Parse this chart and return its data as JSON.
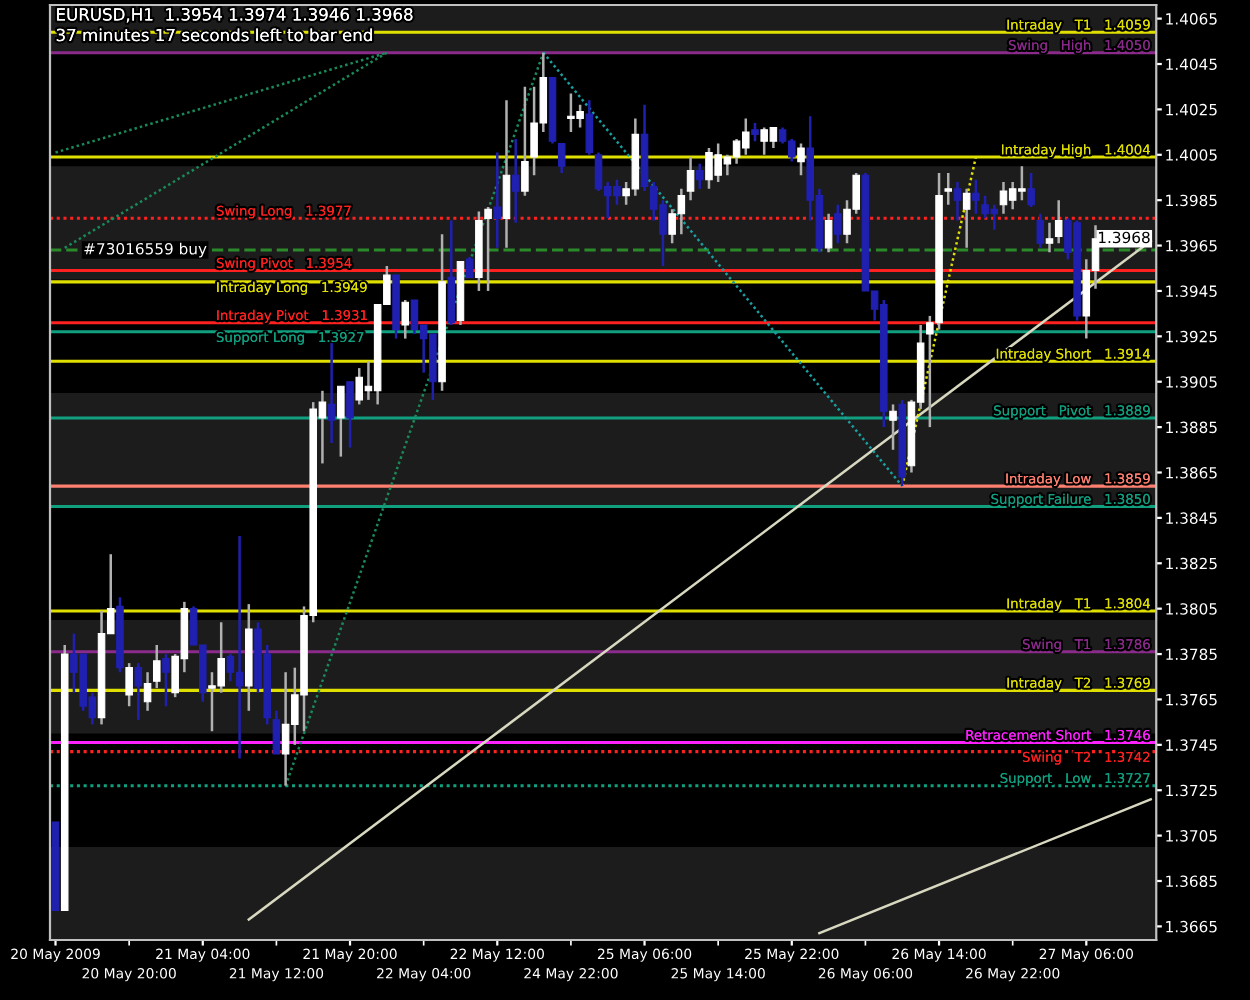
{
  "chart_data": {
    "type": "candlestick",
    "title": "EURUSD,H1  1.3954 1.3974 1.3946 1.3968",
    "subtitle": "37 minutes 17 seconds left to bar end",
    "categories": [
      "20 May 2009",
      null,
      null,
      null,
      null,
      null,
      null,
      null,
      "20 May 20:00",
      null,
      null,
      null,
      null,
      null,
      null,
      null,
      "21 May 04:00",
      null,
      null,
      null,
      null,
      null,
      null,
      null,
      "21 May 12:00",
      null,
      null,
      null,
      null,
      null,
      null,
      null,
      "21 May 20:00",
      null,
      null,
      null,
      null,
      null,
      null,
      null,
      "22 May 04:00",
      null,
      null,
      null,
      null,
      null,
      null,
      null,
      "22 May 12:00",
      null,
      null,
      null,
      null,
      null,
      null,
      null,
      "24 May 22:00",
      null,
      null,
      null,
      null,
      null,
      null,
      null,
      "25 May 06:00",
      null,
      null,
      null,
      null,
      null,
      null,
      null,
      "25 May 14:00",
      null,
      null,
      null,
      null,
      null,
      null,
      null,
      "25 May 22:00",
      null,
      null,
      null,
      null,
      null,
      null,
      null,
      "26 May 06:00",
      null,
      null,
      null,
      null,
      null,
      null,
      null,
      "26 May 14:00",
      null,
      null,
      null,
      null,
      null,
      null,
      null,
      "26 May 22:00",
      null,
      null,
      null,
      null,
      null,
      null,
      null,
      "27 May 06:00",
      null,
      null,
      null,
      null,
      null,
      null,
      null
    ],
    "ohlc": [
      [
        1.3711,
        1.3711,
        1.3672,
        1.3672
      ],
      [
        1.3672,
        1.3789,
        1.3672,
        1.3785
      ],
      [
        1.3785,
        1.3794,
        1.3768,
        1.3777
      ],
      [
        1.3785,
        1.3785,
        1.376,
        1.3762
      ],
      [
        1.3766,
        1.3768,
        1.3754,
        1.3757
      ],
      [
        1.3757,
        1.3804,
        1.3754,
        1.3794
      ],
      [
        1.3794,
        1.3829,
        1.3794,
        1.3805
      ],
      [
        1.3806,
        1.381,
        1.3777,
        1.3779
      ],
      [
        1.3767,
        1.3781,
        1.3762,
        1.3779
      ],
      [
        1.3779,
        1.3781,
        1.3756,
        1.3771
      ],
      [
        1.3764,
        1.3777,
        1.376,
        1.3772
      ],
      [
        1.3773,
        1.3789,
        1.377,
        1.3782
      ],
      [
        1.3783,
        1.3785,
        1.3762,
        1.3777
      ],
      [
        1.3768,
        1.3785,
        1.3766,
        1.3784
      ],
      [
        1.3783,
        1.3808,
        1.3777,
        1.3805
      ],
      [
        1.3805,
        1.3806,
        1.3789,
        1.3789
      ],
      [
        1.3789,
        1.3789,
        1.3764,
        1.3768
      ],
      [
        1.377,
        1.3777,
        1.3751,
        1.3771
      ],
      [
        1.3771,
        1.3799,
        1.3768,
        1.3783
      ],
      [
        1.3784,
        1.3785,
        1.3773,
        1.3777
      ],
      [
        1.3777,
        1.3837,
        1.3739,
        1.3771
      ],
      [
        1.3771,
        1.3807,
        1.376,
        1.3796
      ],
      [
        1.3796,
        1.3799,
        1.3768,
        1.377
      ],
      [
        1.3785,
        1.3789,
        1.3754,
        1.3757
      ],
      [
        1.3756,
        1.376,
        1.3741,
        1.3741
      ],
      [
        1.3741,
        1.3777,
        1.3727,
        1.3754
      ],
      [
        1.3754,
        1.3779,
        1.3745,
        1.3767
      ],
      [
        1.3767,
        1.3806,
        1.3751,
        1.3802
      ],
      [
        1.3802,
        1.3896,
        1.3799,
        1.3893
      ],
      [
        1.3889,
        1.3901,
        1.3869,
        1.3896
      ],
      [
        1.3895,
        1.3922,
        1.3878,
        1.3888
      ],
      [
        1.3889,
        1.3903,
        1.3872,
        1.3903
      ],
      [
        1.3905,
        1.3905,
        1.3876,
        1.3889
      ],
      [
        1.3897,
        1.3911,
        1.3895,
        1.3907
      ],
      [
        1.3901,
        1.3914,
        1.3897,
        1.3903
      ],
      [
        1.3901,
        1.3939,
        1.3895,
        1.3939
      ],
      [
        1.3939,
        1.3956,
        1.3939,
        1.3952
      ],
      [
        1.3952,
        1.3952,
        1.3924,
        1.3928
      ],
      [
        1.393,
        1.3941,
        1.3924,
        1.394
      ],
      [
        1.3941,
        1.3941,
        1.3926,
        1.3928
      ],
      [
        1.393,
        1.393,
        1.3909,
        1.3924
      ],
      [
        1.3926,
        1.3926,
        1.3897,
        1.3905
      ],
      [
        1.3905,
        1.397,
        1.3901,
        1.3949
      ],
      [
        1.3951,
        1.3976,
        1.393,
        1.3931
      ],
      [
        1.3932,
        1.3958,
        1.393,
        1.3958
      ],
      [
        1.3959,
        1.396,
        1.3951,
        1.3951
      ],
      [
        1.3951,
        1.398,
        1.3945,
        1.3976
      ],
      [
        1.3977,
        1.3982,
        1.3945,
        1.3981
      ],
      [
        1.3982,
        1.4006,
        1.3964,
        1.3977
      ],
      [
        1.3977,
        1.4029,
        1.3964,
        1.3996
      ],
      [
        1.3996,
        1.4012,
        1.3975,
        1.3989
      ],
      [
        1.3989,
        1.4035,
        1.3987,
        1.4002
      ],
      [
        1.4004,
        1.4035,
        1.3996,
        1.4019
      ],
      [
        1.4019,
        1.405,
        1.4015,
        1.4039
      ],
      [
        1.4039,
        1.4039,
        1.401,
        1.4011
      ],
      [
        1.401,
        1.401,
        1.3997,
        1.4
      ],
      [
        1.4021,
        1.4032,
        1.4015,
        1.4022
      ],
      [
        1.4021,
        1.4027,
        1.4017,
        1.4024
      ],
      [
        1.4023,
        1.4029,
        1.4005,
        1.4006
      ],
      [
        1.4005,
        1.4006,
        1.3989,
        1.399
      ],
      [
        1.3991,
        1.3993,
        1.3977,
        1.3987
      ],
      [
        1.3991,
        1.3994,
        1.3983,
        1.3987
      ],
      [
        1.3987,
        1.3993,
        1.3983,
        1.399
      ],
      [
        1.399,
        1.4021,
        1.3987,
        1.4014
      ],
      [
        1.4014,
        1.4027,
        1.3989,
        1.3991
      ],
      [
        1.3991,
        1.3993,
        1.3976,
        1.3981
      ],
      [
        1.3983,
        1.3985,
        1.3956,
        1.397
      ],
      [
        1.397,
        1.3981,
        1.3966,
        1.3979
      ],
      [
        1.3979,
        1.399,
        1.397,
        1.3987
      ],
      [
        1.3989,
        1.4004,
        1.3985,
        1.3998
      ],
      [
        1.3998,
        1.4001,
        1.399,
        1.3994
      ],
      [
        1.3994,
        1.4008,
        1.399,
        1.4006
      ],
      [
        1.3996,
        1.401,
        1.3993,
        1.4005
      ],
      [
        1.4001,
        1.4005,
        1.3996,
        1.4004
      ],
      [
        1.4004,
        1.4012,
        1.4001,
        1.4011
      ],
      [
        1.4008,
        1.4021,
        1.4005,
        1.4015
      ],
      [
        1.4016,
        1.4019,
        1.4011,
        1.4014
      ],
      [
        1.4011,
        1.4017,
        1.4005,
        1.4016
      ],
      [
        1.4011,
        1.4017,
        1.4008,
        1.4017
      ],
      [
        1.4016,
        1.4017,
        1.401,
        1.4011
      ],
      [
        1.4011,
        1.4012,
        1.4002,
        1.4004
      ],
      [
        1.4002,
        1.401,
        1.3996,
        1.4008
      ],
      [
        1.4008,
        1.4022,
        1.3976,
        1.3985
      ],
      [
        1.3987,
        1.399,
        1.3962,
        1.3964
      ],
      [
        1.3964,
        1.3979,
        1.3962,
        1.3976
      ],
      [
        1.3979,
        1.3983,
        1.3966,
        1.397
      ],
      [
        1.397,
        1.3985,
        1.3966,
        1.3981
      ],
      [
        1.3981,
        1.3997,
        1.3979,
        1.3996
      ],
      [
        1.3996,
        1.3997,
        1.3945,
        1.3945
      ],
      [
        1.3945,
        1.3945,
        1.3932,
        1.3937
      ],
      [
        1.3939,
        1.3941,
        1.3885,
        1.3892
      ],
      [
        1.3888,
        1.3895,
        1.3875,
        1.3892
      ],
      [
        1.3895,
        1.3897,
        1.3859,
        1.3863
      ],
      [
        1.3868,
        1.3897,
        1.3865,
        1.3896
      ],
      [
        1.3896,
        1.393,
        1.3893,
        1.3922
      ],
      [
        1.3926,
        1.3934,
        1.3885,
        1.3931
      ],
      [
        1.3931,
        1.3997,
        1.3928,
        1.3987
      ],
      [
        1.3989,
        1.3997,
        1.3983,
        1.399
      ],
      [
        1.399,
        1.3993,
        1.3976,
        1.3985
      ],
      [
        1.3981,
        1.399,
        1.3964,
        1.3988
      ],
      [
        1.3988,
        1.3994,
        1.3979,
        1.3985
      ],
      [
        1.3983,
        1.3987,
        1.3977,
        1.3979
      ],
      [
        1.3981,
        1.3983,
        1.3972,
        1.3979
      ],
      [
        1.3983,
        1.3993,
        1.3979,
        1.3989
      ],
      [
        1.3985,
        1.3993,
        1.3981,
        1.399
      ],
      [
        1.3989,
        1.4,
        1.3985,
        1.399
      ],
      [
        1.399,
        1.3997,
        1.3982,
        1.3983
      ],
      [
        1.3976,
        1.3979,
        1.3964,
        1.3966
      ],
      [
        1.3966,
        1.3975,
        1.3962,
        1.3968
      ],
      [
        1.3969,
        1.3985,
        1.3966,
        1.3976
      ],
      [
        1.3976,
        1.3977,
        1.3959,
        1.3962
      ],
      [
        1.3975,
        1.3976,
        1.3932,
        1.3934
      ],
      [
        1.3934,
        1.3959,
        1.3924,
        1.3954
      ],
      [
        1.3954,
        1.3974,
        1.3946,
        1.3968
      ],
      null,
      null,
      null,
      null,
      null,
      null
    ],
    "colors": [
      "#2020b0",
      "#ffffff",
      "#2020b0",
      "#2020b0",
      "#2020b0",
      "#ffffff",
      "#ffffff",
      "#2020b0",
      "#ffffff",
      "#2020b0",
      "#ffffff",
      "#ffffff",
      "#2020b0",
      "#ffffff",
      "#ffffff",
      "#2020b0",
      "#2020b0",
      "#ffffff",
      "#ffffff",
      "#2020b0",
      "#2020b0",
      "#ffffff",
      "#2020b0",
      "#2020b0",
      "#2020b0",
      "#ffffff",
      "#ffffff",
      "#ffffff",
      "#ffffff",
      "#ffffff",
      "#2020b0",
      "#ffffff",
      "#2020b0",
      "#ffffff",
      "#ffffff",
      "#ffffff",
      "#ffffff",
      "#2020b0",
      "#ffffff",
      "#2020b0",
      "#2020b0",
      "#2020b0",
      "#ffffff",
      "#2020b0",
      "#ffffff",
      "#2020b0",
      "#ffffff",
      "#ffffff",
      "#2020b0",
      "#ffffff",
      "#2020b0",
      "#ffffff",
      "#ffffff",
      "#ffffff",
      "#2020b0",
      "#2020b0",
      "#ffffff",
      "#ffffff",
      "#2020b0",
      "#2020b0",
      "#2020b0",
      "#2020b0",
      "#ffffff",
      "#ffffff",
      "#2020b0",
      "#2020b0",
      "#2020b0",
      "#ffffff",
      "#ffffff",
      "#ffffff",
      "#2020b0",
      "#ffffff",
      "#ffffff",
      "#ffffff",
      "#ffffff",
      "#ffffff",
      "#2020b0",
      "#ffffff",
      "#ffffff",
      "#2020b0",
      "#2020b0",
      "#ffffff",
      "#2020b0",
      "#2020b0",
      "#ffffff",
      "#2020b0",
      "#ffffff",
      "#ffffff",
      "#2020b0",
      "#2020b0",
      "#2020b0",
      "#ffffff",
      "#2020b0",
      "#ffffff",
      "#ffffff",
      "#ffffff",
      "#ffffff",
      "#ffffff",
      "#2020b0",
      "#ffffff",
      "#2020b0",
      "#2020b0",
      "#2020b0",
      "#ffffff",
      "#ffffff",
      "#ffffff",
      "#2020b0",
      "#2020b0",
      "#ffffff",
      "#ffffff",
      "#2020b0",
      "#2020b0",
      "#ffffff",
      "#ffffff",
      null,
      null,
      null,
      null,
      null,
      null
    ],
    "series": [
      {
        "type": "line",
        "color": "#d8d8c0",
        "line_style": "solid",
        "values": [
          null,
          null,
          null,
          null,
          null,
          null,
          null,
          null,
          null,
          null,
          null,
          null,
          null,
          null,
          null,
          null,
          null,
          null,
          null,
          null,
          null,
          1.3668,
          null,
          null,
          null,
          null,
          null,
          null,
          null,
          null,
          null,
          null,
          null,
          null,
          null,
          null,
          null,
          null,
          null,
          null,
          null,
          null,
          null,
          null,
          null,
          null,
          null,
          null,
          null,
          null,
          null,
          null,
          null,
          null,
          null,
          null,
          null,
          null,
          null,
          null,
          null,
          null,
          null,
          null,
          null,
          null,
          null,
          null,
          null,
          null,
          null,
          null,
          null,
          null,
          null,
          null,
          null,
          null,
          null,
          null,
          null,
          null,
          null,
          null,
          null,
          null,
          null,
          null,
          null,
          null,
          null,
          null,
          null,
          null,
          null,
          null,
          null,
          null,
          null,
          null,
          null,
          null,
          null,
          null,
          null,
          null,
          null,
          null,
          null,
          null,
          null,
          null,
          null,
          null,
          null,
          null,
          null,
          null,
          null,
          1.3967
        ]
      },
      {
        "type": "line",
        "color": "#d8d8c0",
        "line_style": "solid",
        "values": [
          null,
          null,
          null,
          null,
          null,
          null,
          null,
          null,
          null,
          null,
          null,
          null,
          null,
          null,
          null,
          null,
          null,
          null,
          null,
          null,
          null,
          null,
          null,
          null,
          null,
          null,
          null,
          null,
          null,
          null,
          null,
          null,
          null,
          null,
          null,
          null,
          null,
          null,
          null,
          null,
          null,
          null,
          null,
          null,
          null,
          null,
          null,
          null,
          null,
          null,
          null,
          null,
          null,
          null,
          null,
          null,
          null,
          null,
          null,
          null,
          null,
          null,
          null,
          null,
          null,
          null,
          null,
          null,
          null,
          null,
          null,
          null,
          null,
          null,
          null,
          null,
          null,
          null,
          null,
          null,
          null,
          null,
          null,
          1.3662,
          null,
          null,
          null,
          null,
          null,
          null,
          null,
          null,
          null,
          null,
          null,
          null,
          null,
          null,
          null,
          null,
          null,
          null,
          null,
          null,
          null,
          null,
          null,
          null,
          null,
          null,
          null,
          null,
          null,
          null,
          null,
          null,
          null,
          null,
          null,
          1.3721
        ]
      },
      {
        "type": "line",
        "color": "#1a8a5a",
        "line_style": "dotted",
        "values": [
          null,
          null,
          null,
          null,
          null,
          null,
          null,
          null,
          null,
          null,
          null,
          null,
          null,
          null,
          null,
          null,
          null,
          null,
          null,
          null,
          null,
          null,
          null,
          null,
          null,
          1.3727,
          null,
          null,
          null,
          null,
          null,
          null,
          null,
          null,
          null,
          null,
          null,
          null,
          null,
          null,
          null,
          null,
          null,
          null,
          null,
          null,
          null,
          null,
          null,
          null,
          null,
          null,
          null,
          1.405,
          null,
          null,
          null,
          null,
          null,
          null,
          null,
          null,
          null,
          null,
          null,
          null,
          null,
          null,
          null,
          null,
          null,
          null,
          null,
          null,
          null,
          null,
          null,
          null,
          null,
          null,
          null,
          null,
          null,
          null,
          null,
          null,
          null,
          null,
          null,
          null,
          null,
          null,
          null,
          null,
          null,
          null,
          null,
          null,
          null,
          null,
          null,
          null,
          null,
          null,
          null,
          null,
          null,
          null,
          null,
          null,
          null,
          null,
          null,
          null,
          null,
          null,
          null,
          null,
          null,
          null
        ]
      },
      {
        "type": "line",
        "color": "#1a8a5a",
        "line_style": "dotted",
        "values": [
          1.4006,
          null,
          null,
          null,
          null,
          null,
          null,
          null,
          null,
          null,
          null,
          null,
          null,
          null,
          null,
          null,
          null,
          null,
          null,
          null,
          null,
          null,
          null,
          null,
          null,
          null,
          null,
          null,
          null,
          null,
          null,
          null,
          null,
          null,
          null,
          null,
          1.405,
          null,
          null,
          null,
          null,
          null,
          null,
          null,
          null,
          null,
          null,
          null,
          null,
          null,
          null,
          null,
          null,
          null,
          null,
          null,
          null,
          null,
          null,
          null,
          null,
          null,
          null,
          null,
          null,
          null,
          null,
          null,
          null,
          null,
          null,
          null,
          null,
          null,
          null,
          null,
          null,
          null,
          null,
          null,
          null,
          null,
          null,
          null,
          null,
          null,
          null,
          null,
          null,
          null,
          null,
          null,
          null,
          null,
          null,
          null,
          null,
          null,
          null,
          null,
          null,
          null,
          null,
          null,
          null,
          null,
          null,
          null,
          null,
          null,
          null,
          null,
          null,
          null,
          null,
          null,
          null,
          null,
          null,
          null
        ]
      },
      {
        "type": "line",
        "color": "#1a8a5a",
        "line_style": "dotted",
        "values": [
          null,
          1.3964,
          null,
          null,
          null,
          null,
          null,
          null,
          null,
          null,
          null,
          null,
          null,
          null,
          null,
          null,
          null,
          null,
          null,
          null,
          null,
          null,
          null,
          null,
          null,
          null,
          null,
          null,
          null,
          null,
          null,
          null,
          null,
          null,
          null,
          null,
          1.405,
          null,
          null,
          null,
          null,
          null,
          null,
          null,
          null,
          null,
          null,
          null,
          null,
          null,
          null,
          null,
          null,
          null,
          null,
          null,
          null,
          null,
          null,
          null,
          null,
          null,
          null,
          null,
          null,
          null,
          null,
          null,
          null,
          null,
          null,
          null,
          null,
          null,
          null,
          null,
          null,
          null,
          null,
          null,
          null,
          null,
          null,
          null,
          null,
          null,
          null,
          null,
          null,
          null,
          null,
          null,
          null,
          null,
          null,
          null,
          null,
          null,
          null,
          null,
          null,
          null,
          null,
          null,
          null,
          null,
          null,
          null,
          null,
          null,
          null,
          null,
          null,
          null,
          null,
          null,
          null,
          null,
          null,
          null
        ]
      },
      {
        "type": "line",
        "color": "#1aa0a0",
        "line_style": "dotted",
        "values": [
          null,
          null,
          null,
          null,
          null,
          null,
          null,
          null,
          null,
          null,
          null,
          null,
          null,
          null,
          null,
          null,
          null,
          null,
          null,
          null,
          null,
          null,
          null,
          null,
          null,
          null,
          null,
          null,
          null,
          null,
          null,
          null,
          null,
          null,
          null,
          null,
          null,
          null,
          null,
          null,
          null,
          null,
          null,
          null,
          null,
          null,
          null,
          null,
          null,
          null,
          null,
          null,
          null,
          1.405,
          null,
          null,
          null,
          null,
          null,
          null,
          null,
          null,
          null,
          null,
          null,
          null,
          null,
          null,
          null,
          null,
          null,
          null,
          null,
          null,
          null,
          null,
          null,
          null,
          null,
          null,
          null,
          null,
          null,
          null,
          null,
          null,
          null,
          null,
          null,
          null,
          null,
          null,
          1.3859,
          null,
          null,
          null,
          null,
          null,
          null,
          null,
          null,
          null,
          null,
          null,
          null,
          null,
          null,
          null,
          null,
          null,
          null,
          null,
          null,
          null,
          null,
          null,
          null,
          null,
          null,
          null
        ]
      },
      {
        "type": "line",
        "color": "#e0e000",
        "line_style": "dotted",
        "values": [
          null,
          null,
          null,
          null,
          null,
          null,
          null,
          null,
          null,
          null,
          null,
          null,
          null,
          null,
          null,
          null,
          null,
          null,
          null,
          null,
          null,
          null,
          null,
          null,
          null,
          null,
          null,
          null,
          null,
          null,
          null,
          null,
          null,
          null,
          null,
          null,
          null,
          null,
          null,
          null,
          null,
          null,
          null,
          null,
          null,
          null,
          null,
          null,
          null,
          null,
          null,
          null,
          null,
          null,
          null,
          null,
          null,
          null,
          null,
          null,
          null,
          null,
          null,
          null,
          null,
          null,
          null,
          null,
          null,
          null,
          null,
          null,
          null,
          null,
          null,
          null,
          null,
          null,
          null,
          null,
          null,
          null,
          null,
          null,
          null,
          null,
          null,
          null,
          null,
          null,
          null,
          null,
          1.3859,
          null,
          null,
          null,
          null,
          null,
          null,
          null,
          1.4004,
          null,
          null,
          null,
          null,
          null,
          null,
          null,
          null,
          null,
          null,
          null,
          null,
          null,
          null,
          null,
          null,
          null,
          null,
          null
        ]
      }
    ],
    "ylim": [
      1.3659,
      1.4071
    ],
    "yticks": [
      1.3665,
      1.3685,
      1.3705,
      1.3725,
      1.3745,
      1.3765,
      1.3785,
      1.3805,
      1.3825,
      1.3845,
      1.3865,
      1.3885,
      1.3905,
      1.3925,
      1.3945,
      1.3965,
      1.3985,
      1.4005,
      1.4025,
      1.4045,
      1.4065
    ],
    "bands": [
      {
        "axis": "y",
        "from": 1.405,
        "to": 1.4071,
        "color": "#1c1c1c"
      },
      {
        "axis": "y",
        "from": 1.395,
        "to": 1.4,
        "color": "#1c1c1c"
      },
      {
        "axis": "y",
        "from": 1.385,
        "to": 1.39,
        "color": "#1c1c1c"
      },
      {
        "axis": "y",
        "from": 1.375,
        "to": 1.38,
        "color": "#1c1c1c"
      },
      {
        "axis": "y",
        "from": 1.3659,
        "to": 1.37,
        "color": "#1c1c1c"
      }
    ],
    "ref_lines": [
      {
        "axis": "y",
        "value": 1.3963,
        "color": "#2a8a2a",
        "line_style": "dashed"
      },
      {
        "axis": "y",
        "value": 1.4059,
        "label": "Intraday   T1   1.4059",
        "color": "#e0e000",
        "line_style": "solid"
      },
      {
        "axis": "y",
        "value": 1.405,
        "label": "Swing   High   1.4050",
        "color": "#8a2a8a",
        "line_style": "solid"
      },
      {
        "axis": "y",
        "value": 1.4004,
        "label": "Intraday High   1.4004",
        "color": "#e0e000",
        "line_style": "solid"
      },
      {
        "axis": "y",
        "value": 1.3977,
        "label": "Swing Long   1.3977",
        "color": "#ff2020",
        "line_style": "dotted"
      },
      {
        "axis": "y",
        "value": 1.3954,
        "label": "Swing Pivot   1.3954",
        "color": "#ff2020",
        "line_style": "solid"
      },
      {
        "axis": "y",
        "value": 1.3949,
        "label": "Intraday Long   1.3949",
        "color": "#e0e000",
        "line_style": "solid"
      },
      {
        "axis": "y",
        "value": 1.3931,
        "label": "Intraday Pivot   1.3931",
        "color": "#ff2020",
        "line_style": "solid"
      },
      {
        "axis": "y",
        "value": 1.3927,
        "label": "Support Long   1.3927",
        "color": "#10a080",
        "line_style": "solid"
      },
      {
        "axis": "y",
        "value": 1.3914,
        "label": "Intraday Short   1.3914",
        "color": "#e0e000",
        "line_style": "solid"
      },
      {
        "axis": "y",
        "value": 1.3889,
        "label": "Support   Pivot   1.3889",
        "color": "#10a080",
        "line_style": "solid"
      },
      {
        "axis": "y",
        "value": 1.3859,
        "label": "Intraday Low   1.3859",
        "color": "#ff8070",
        "line_style": "solid"
      },
      {
        "axis": "y",
        "value": 1.385,
        "label": "Support Failure   1.3850",
        "color": "#10a080",
        "line_style": "solid"
      },
      {
        "axis": "y",
        "value": 1.3804,
        "label": "Intraday   T1   1.3804",
        "color": "#e0e000",
        "line_style": "solid"
      },
      {
        "axis": "y",
        "value": 1.3786,
        "label": "Swing   T1   1.3786",
        "color": "#8a2a8a",
        "line_style": "solid"
      },
      {
        "axis": "y",
        "value": 1.3769,
        "label": "Intraday   T2   1.3769",
        "color": "#e0e000",
        "line_style": "solid"
      },
      {
        "axis": "y",
        "value": 1.3746,
        "label": "Retracement Short   1.3746",
        "color": "#ff20ff",
        "line_style": "solid"
      },
      {
        "axis": "y",
        "value": 1.3742,
        "label": "Swing   T2   1.3742",
        "color": "#ff2020",
        "line_style": "dotted"
      },
      {
        "axis": "y",
        "value": 1.3727,
        "label": "Support   Low   1.3727",
        "color": "#10a080",
        "line_style": "dotted"
      }
    ],
    "annotations": [
      {
        "text": "#73016559 buy",
        "y": 1.3963
      },
      {
        "text": "1.3968",
        "y": 1.3968
      }
    ]
  }
}
